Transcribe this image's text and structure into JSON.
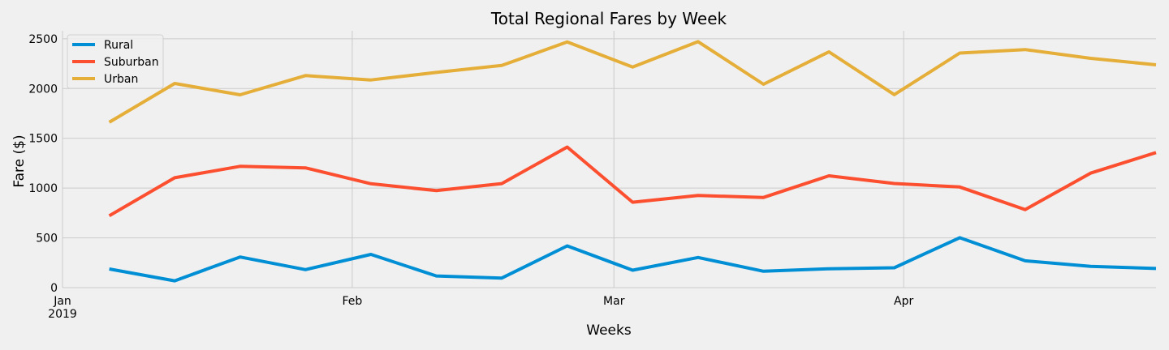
{
  "chart_data": {
    "type": "line",
    "title": "Total Regional Fares by Week",
    "xlabel": "Weeks",
    "ylabel": "Fare ($)",
    "ylim": [
      0,
      2580
    ],
    "yticks": [
      0,
      500,
      1000,
      1500,
      2000,
      2500
    ],
    "x": [
      "2019-01-06",
      "2019-01-13",
      "2019-01-20",
      "2019-01-27",
      "2019-02-03",
      "2019-02-10",
      "2019-02-17",
      "2019-02-24",
      "2019-03-03",
      "2019-03-10",
      "2019-03-17",
      "2019-03-24",
      "2019-03-31",
      "2019-04-07",
      "2019-04-14",
      "2019-04-21",
      "2019-04-28"
    ],
    "xticks": [
      {
        "label": "Jan",
        "sublabel": "2019"
      },
      {
        "label": "Feb",
        "sublabel": ""
      },
      {
        "label": "Mar",
        "sublabel": ""
      },
      {
        "label": "Apr",
        "sublabel": ""
      }
    ],
    "grid": true,
    "legend_position": "top-left",
    "series": [
      {
        "name": "Rural",
        "color": "#008fd5",
        "values": [
          187,
          68,
          308,
          181,
          334,
          117,
          96,
          419,
          175,
          303,
          164,
          190,
          199,
          501,
          269,
          214,
          192
        ]
      },
      {
        "name": "Suburban",
        "color": "#fc4f30",
        "values": [
          722,
          1104,
          1218,
          1203,
          1043,
          974,
          1045,
          1412,
          858,
          925,
          906,
          1123,
          1046,
          1011,
          784,
          1150,
          1357
        ]
      },
      {
        "name": "Urban",
        "color": "#e5ae38",
        "values": [
          1661,
          2051,
          1937,
          2130,
          2086,
          2162,
          2232,
          2468,
          2215,
          2471,
          2043,
          2368,
          1939,
          2356,
          2391,
          2303,
          2238
        ]
      }
    ]
  }
}
